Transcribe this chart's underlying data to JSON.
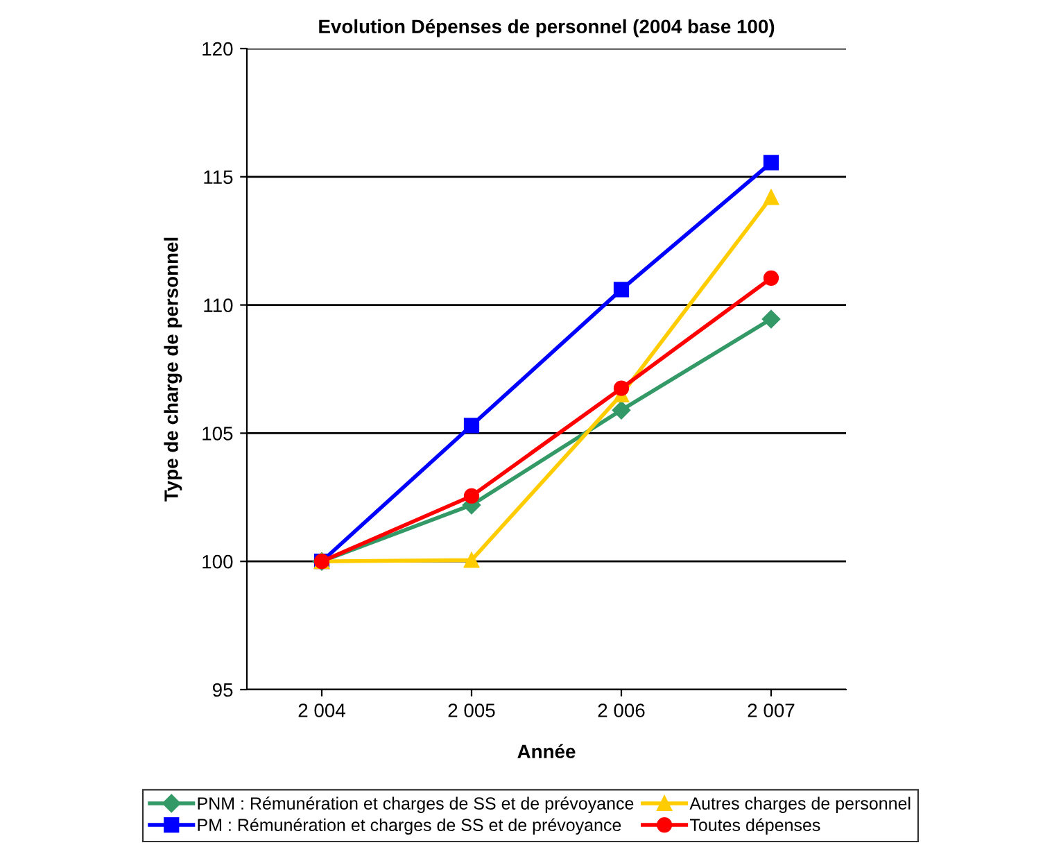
{
  "chart_data": {
    "type": "line",
    "title": "Evolution Dépenses de personnel (2004 base 100)",
    "xlabel": "Année",
    "ylabel": "Type de charge de personnel",
    "categories": [
      "2 004",
      "2 005",
      "2 006",
      "2 007"
    ],
    "series": [
      {
        "name": "PNM : Rémunération et charges de SS et de prévoyance",
        "color": "#339966",
        "marker": "diamond",
        "values": [
          100,
          102.2,
          105.9,
          109.45
        ]
      },
      {
        "name": "PM : Rémunération et charges de SS et de prévoyance",
        "color": "#0000ff",
        "marker": "square",
        "values": [
          100,
          105.3,
          110.6,
          115.55
        ]
      },
      {
        "name": "Autres charges de personnel",
        "color": "#ffcc00",
        "marker": "triangle",
        "values": [
          100,
          100.05,
          106.5,
          114.2
        ]
      },
      {
        "name": "Toutes dépenses",
        "color": "#ff0000",
        "marker": "circle",
        "values": [
          100,
          102.55,
          106.75,
          111.05
        ]
      }
    ],
    "ylim": [
      95,
      120
    ],
    "yticks": [
      95,
      100,
      105,
      110,
      115,
      120
    ],
    "grid": "y",
    "legend": "bottom",
    "line_style": "solid"
  }
}
